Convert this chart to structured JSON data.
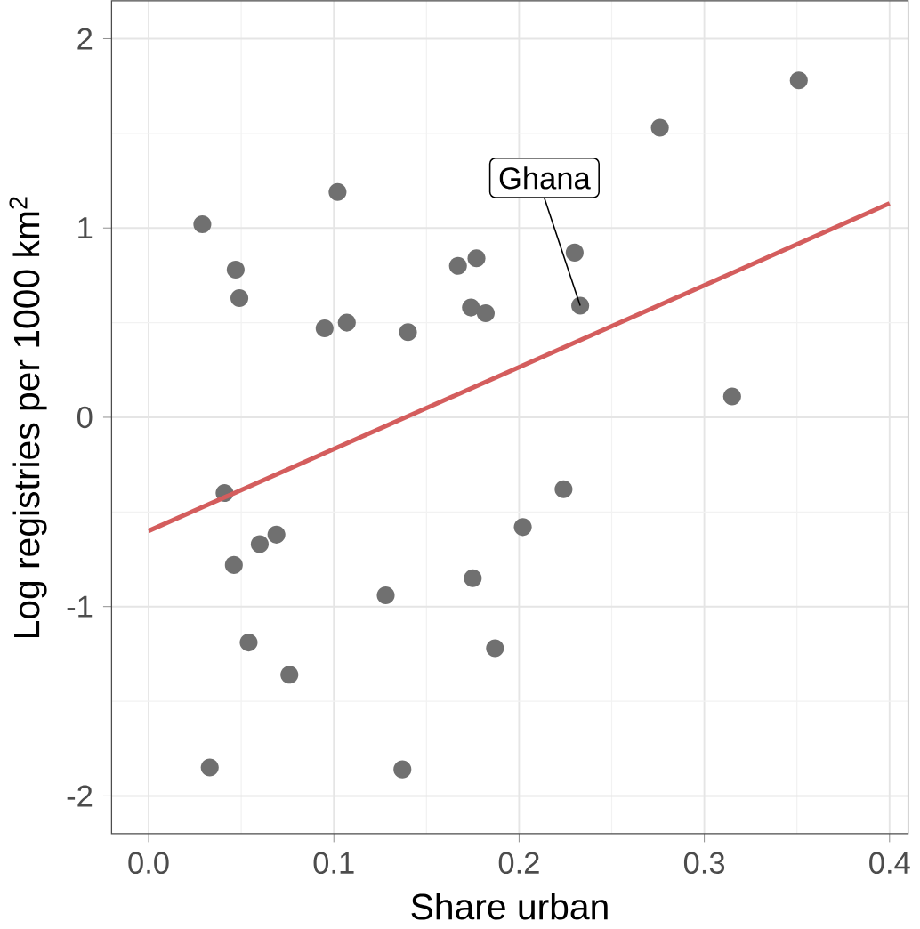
{
  "chart_data": {
    "type": "scatter",
    "xlabel": "Share urban",
    "ylabel": "Log registries per 1000 km$^{2}$",
    "xlim": [
      -0.02,
      0.41
    ],
    "ylim": [
      -2.2,
      2.2
    ],
    "xticks": [
      {
        "value": 0,
        "label": "0.0"
      },
      0.1,
      0.2,
      0.3,
      0.4
    ],
    "yticks": [
      -2,
      -1,
      0,
      1,
      2
    ],
    "grid": true,
    "series": [
      {
        "type": "scatter",
        "marker": "circle",
        "color": "#707070",
        "x": [
          0.029,
          0.047,
          0.049,
          0.102,
          0.095,
          0.107,
          0.14,
          0.167,
          0.177,
          0.174,
          0.182,
          0.23,
          0.233,
          0.276,
          0.351,
          0.315,
          0.041,
          0.046,
          0.06,
          0.069,
          0.054,
          0.076,
          0.033,
          0.128,
          0.137,
          0.175,
          0.187,
          0.202,
          0.224
        ],
        "values": [
          1.02,
          0.78,
          0.63,
          1.19,
          0.47,
          0.5,
          0.45,
          0.8,
          0.84,
          0.58,
          0.55,
          0.87,
          0.59,
          1.53,
          1.78,
          0.11,
          -0.4,
          -0.78,
          -0.67,
          -0.62,
          -1.19,
          -1.36,
          -1.85,
          -0.94,
          -1.86,
          -0.85,
          -1.22,
          -0.58,
          -0.38
        ]
      },
      {
        "type": "line",
        "color": "#d45d5d",
        "x": [
          0.0,
          0.4
        ],
        "values": [
          -0.6,
          1.13
        ]
      }
    ],
    "annotations": [
      {
        "text": "Ghana",
        "x": 0.233,
        "y": 0.59
      }
    ]
  }
}
